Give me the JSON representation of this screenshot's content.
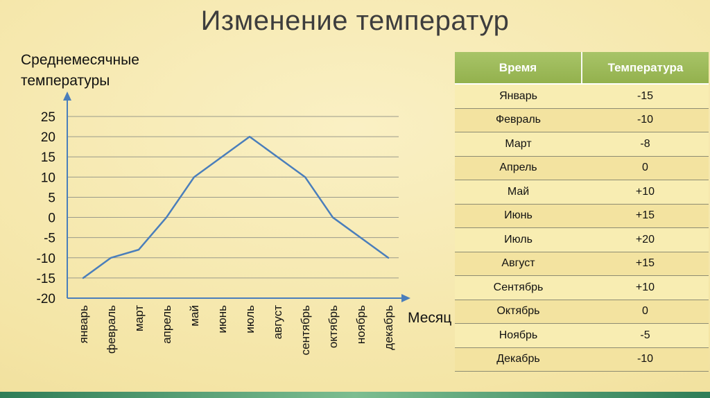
{
  "slide": {
    "title": "Изменение температур"
  },
  "colors": {
    "line": "#4a7ebb",
    "axis": "#4a7ebb",
    "grid": "#9a9a8a",
    "table_header_bg": "#9bbb59",
    "footer_teal": "#2f7d57"
  },
  "chart_data": {
    "type": "line",
    "title": "Среднемесячные температуры",
    "x": [
      "январь",
      "февраль",
      "март",
      "апрель",
      "май",
      "июнь",
      "июль",
      "август",
      "сентябрь",
      "октябрь",
      "ноябрь",
      "декабрь"
    ],
    "values": [
      -15,
      -10,
      -8,
      0,
      10,
      15,
      20,
      15,
      10,
      0,
      -5,
      -10
    ],
    "xlabel": "Месяц",
    "ylabel": "",
    "ylim": [
      -20,
      25
    ],
    "ytick_step": 5,
    "yticks": [
      25,
      20,
      15,
      10,
      5,
      0,
      -5,
      -10,
      -15,
      -20
    ],
    "grid": true,
    "legend": false
  },
  "table": {
    "headers": [
      "Время",
      "Температура"
    ],
    "rows": [
      [
        "Январь",
        "-15"
      ],
      [
        "Февраль",
        "-10"
      ],
      [
        "Март",
        "-8"
      ],
      [
        "Апрель",
        "0"
      ],
      [
        "Май",
        "+10"
      ],
      [
        "Июнь",
        "+15"
      ],
      [
        "Июль",
        "+20"
      ],
      [
        "Август",
        "+15"
      ],
      [
        "Сентябрь",
        "+10"
      ],
      [
        "Октябрь",
        "0"
      ],
      [
        "Ноябрь",
        "-5"
      ],
      [
        "Декабрь",
        "-10"
      ]
    ]
  }
}
